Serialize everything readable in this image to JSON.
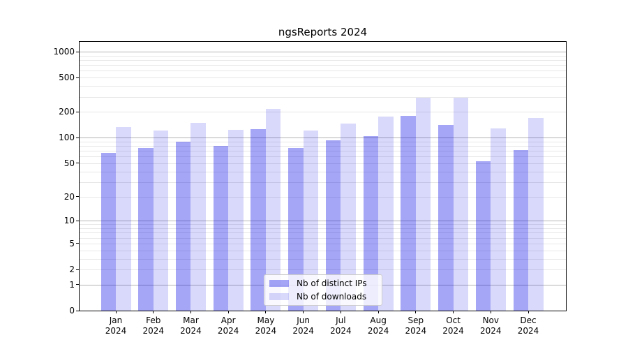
{
  "chart_data": {
    "type": "bar",
    "title": "ngsReports 2024",
    "categories": [
      "Jan",
      "Feb",
      "Mar",
      "Apr",
      "May",
      "Jun",
      "Jul",
      "Aug",
      "Sep",
      "Oct",
      "Nov",
      "Dec"
    ],
    "year": "2024",
    "series": [
      {
        "name": "Nb of distinct IPs",
        "values": [
          66,
          76,
          89,
          80,
          126,
          75,
          93,
          105,
          178,
          140,
          53,
          71
        ],
        "fill": "rgba(0,0,230,0.35)",
        "hex_on_white": "#a6a6f6"
      },
      {
        "name": "Nb of downloads",
        "values": [
          132,
          122,
          149,
          124,
          218,
          122,
          147,
          177,
          290,
          292,
          127,
          171
        ],
        "fill": "rgba(0,0,230,0.15)",
        "hex_on_white": "#dadafb"
      }
    ],
    "xlabel": "",
    "ylabel": "",
    "yscale": "log1p",
    "ylim": [
      0,
      1300
    ],
    "yticks": [
      1000,
      500,
      200,
      100,
      50,
      20,
      10,
      5,
      2,
      1,
      0
    ],
    "grid": {
      "on": true,
      "major_values": [
        1,
        10,
        100,
        1000
      ],
      "minor_values": [
        2,
        3,
        4,
        5,
        6,
        7,
        8,
        9,
        20,
        30,
        40,
        50,
        60,
        70,
        80,
        90,
        200,
        300,
        400,
        500,
        600,
        700,
        800,
        900
      ]
    },
    "legend_position": "lower center",
    "colors": {
      "grid_major": "#b4b4b4",
      "grid_minor": "#e7e7e7",
      "spine": "#000000",
      "background": "#ffffff"
    }
  }
}
